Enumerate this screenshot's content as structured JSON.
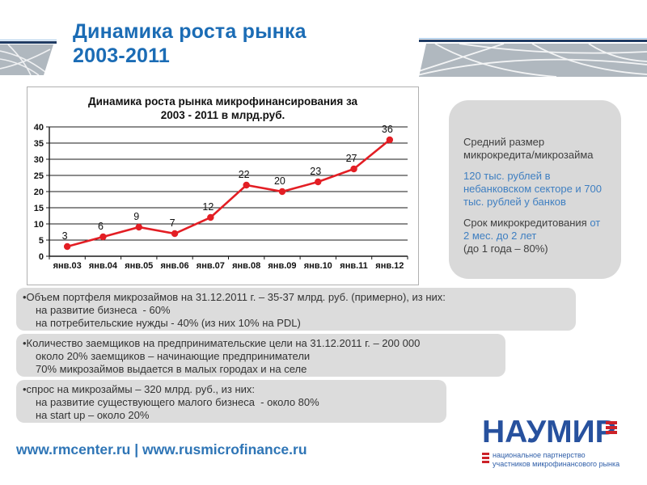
{
  "slide": {
    "title_line1": "Динамика роста рынка",
    "title_line2": "2003-2011",
    "footer_links": "www.rmcenter.ru | www.rusmicrofinance.ru"
  },
  "chart_data": {
    "type": "line",
    "title": "Динамика роста рынка микрофинансирования за 2003 - 2011 в млрд.руб.",
    "title_lines": [
      "Динамика роста рынка микрофинансирования за",
      "2003 - 2011 в млрд.руб."
    ],
    "categories": [
      "янв.03",
      "янв.04",
      "янв.05",
      "янв.06",
      "янв.07",
      "янв.08",
      "янв.09",
      "янв.10",
      "янв.11",
      "янв.12"
    ],
    "values": [
      3,
      6,
      9,
      7,
      12,
      22,
      20,
      23,
      27,
      36
    ],
    "ylim": [
      0,
      40
    ],
    "y_ticks": [
      0,
      5,
      10,
      15,
      20,
      25,
      30,
      35,
      40
    ],
    "grid": true,
    "legend": "none",
    "data_labels": true,
    "line_color": "#e31e24"
  },
  "sidebar": {
    "p1": "Средний размер микрокредита/микрозайма",
    "p2": "120 тыс. рублей в небанковском секторе и 700 тыс. рублей у банков",
    "p3_dark": "Срок микрокредитования ",
    "p3_blue": "от 2 мес. до 2 лет",
    "p3_tail": "(до 1 года – 80%)"
  },
  "bullets": [
    {
      "lines": [
        "•Объем портфеля микрозаймов на 31.12.2011 г. – 35-37 млрд. руб. (примерно), из них:",
        "на развитие бизнеса  - 60%",
        "на потребительские нужды - 40% (из них 10% на PDL)"
      ]
    },
    {
      "lines": [
        "•Количество заемщиков на предпринимательские цели на 31.12.2011 г. – 200 000",
        "около 20% заемщиков – начинающие предприниматели",
        "70% микрозаймов выдается в малых городах и на селе"
      ]
    },
    {
      "lines": [
        "•спрос на микрозаймы – 320 млрд. руб., из них:",
        "на развитие существующего малого бизнеса  - около 80%",
        "на start up – около 20%"
      ]
    }
  ],
  "logo": {
    "main": "НАУМИР",
    "sub1": "национальное партнерство",
    "sub2": "участников микрофинансового рынка"
  },
  "colors": {
    "title_blue": "#1b6cb5",
    "accent_blue": "#3f7fc1",
    "line_red": "#e31e24",
    "box_gray": "#dcdcdc",
    "sidebar_gray": "#d9d9d9",
    "navy": "#1f3b63",
    "logo_blue": "#27519e",
    "logo_red": "#cc2229"
  }
}
